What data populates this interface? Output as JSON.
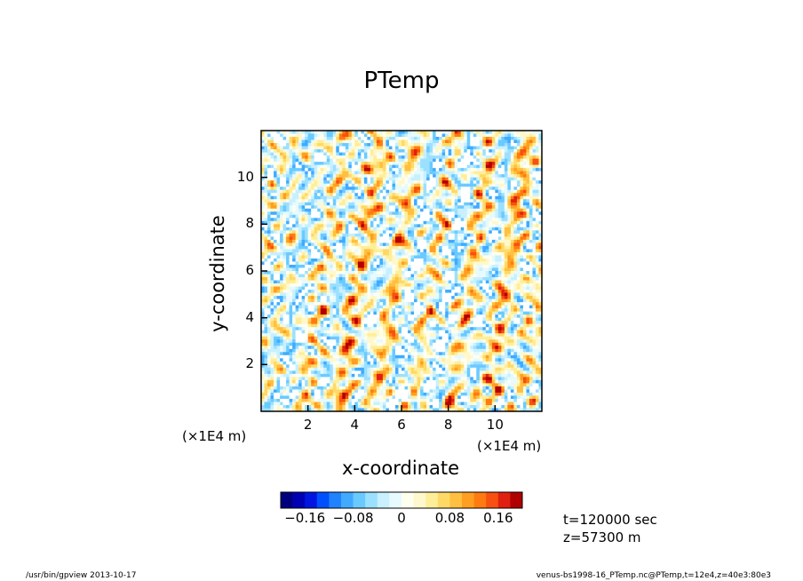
{
  "chart_data": {
    "type": "heatmap",
    "title": "PTemp",
    "xlabel": "x-coordinate",
    "ylabel": "y-coordinate",
    "x_unit": "(×1E4 m)",
    "y_unit": "(×1E4 m)",
    "xlim": [
      0,
      12
    ],
    "ylim": [
      0,
      12
    ],
    "x_ticks": [
      "2",
      "4",
      "6",
      "8",
      "10"
    ],
    "y_ticks": [
      "2",
      "4",
      "6",
      "8",
      "10"
    ],
    "colorbar": {
      "range": [
        -0.2,
        0.2
      ],
      "tick_labels": [
        "−0.16",
        "−0.08",
        "0",
        "0.08",
        "0.16"
      ],
      "colors": [
        "#00007f",
        "#0000b4",
        "#0016e0",
        "#0050ff",
        "#2082ff",
        "#40aaff",
        "#6acaff",
        "#9ce0ff",
        "#c8f0ff",
        "#e6faff",
        "#fffff0",
        "#fff8cc",
        "#ffee99",
        "#ffd966",
        "#ffbf40",
        "#ff9e20",
        "#ff7a10",
        "#f75010",
        "#e02010",
        "#b00000"
      ]
    },
    "annotations": [
      "t=120000 sec",
      "z=57300 m"
    ]
  },
  "footer": {
    "left": "/usr/bin/gpview   2013-10-17",
    "right": "venus-bs1998-16_PTemp.nc@PTemp,t=12e4,z=40e3:80e3"
  },
  "colors": {
    "axis": "#000000",
    "background": "#ffffff"
  }
}
